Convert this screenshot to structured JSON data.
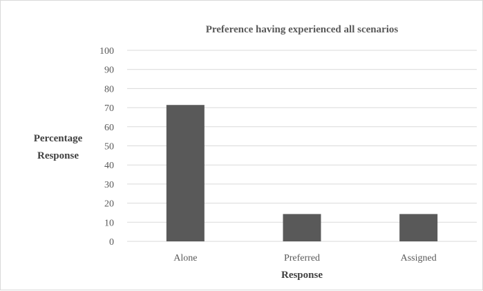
{
  "chart_data": {
    "type": "bar",
    "title": "Preference having  experienced all scenarios",
    "ylabel_lines": [
      "Percentage",
      "Response"
    ],
    "xlabel": "Response",
    "categories": [
      "Alone",
      "Preferred",
      "Assigned"
    ],
    "values": [
      71.4,
      14.3,
      14.3
    ],
    "ylim": [
      0,
      100
    ],
    "yticks": [
      0,
      10,
      20,
      30,
      40,
      50,
      60,
      70,
      80,
      90,
      100
    ],
    "grid": true,
    "legend": "none",
    "bar_color": "#595959"
  }
}
